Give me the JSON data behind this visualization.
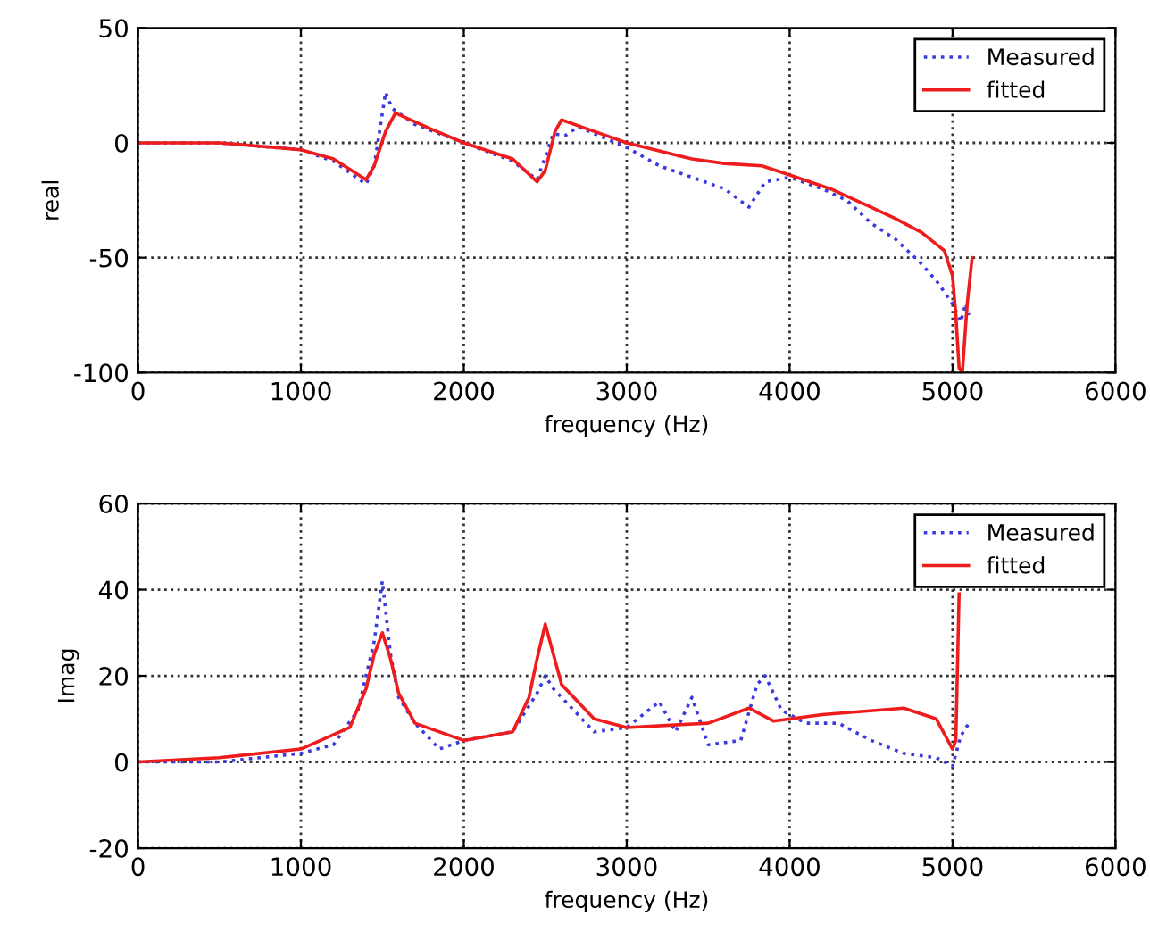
{
  "chart_data": [
    {
      "type": "line",
      "xlabel": "frequency (Hz)",
      "ylabel": "real",
      "xlim": [
        0,
        6000
      ],
      "xticks": [
        0,
        1000,
        2000,
        3000,
        4000,
        5000,
        6000
      ],
      "ylim": [
        -100,
        50
      ],
      "yticks": [
        -100,
        -50,
        0,
        50
      ],
      "grid": true,
      "legend": "top right",
      "series": [
        {
          "name": "Measured",
          "color": "#3a3adf",
          "line_style": "dotted",
          "x": [
            0,
            500,
            1000,
            1200,
            1400,
            1450,
            1520,
            1560,
            1700,
            2000,
            2300,
            2450,
            2550,
            2620,
            2700,
            3000,
            3200,
            3400,
            3600,
            3750,
            3850,
            4000,
            4200,
            4350,
            4500,
            4650,
            4800,
            4900,
            5000,
            5050,
            5080,
            5100
          ],
          "values": [
            0,
            0,
            -3,
            -8,
            -18,
            -10,
            22,
            15,
            8,
            0,
            -8,
            -16,
            4,
            3,
            7,
            -2,
            -10,
            -15,
            -20,
            -28,
            -17,
            -15,
            -20,
            -25,
            -35,
            -42,
            -52,
            -60,
            -70,
            -78,
            -70,
            -75
          ]
        },
        {
          "name": "fitted",
          "color": "#ee1c1c",
          "line_style": "solid",
          "x": [
            0,
            500,
            1000,
            1200,
            1400,
            1450,
            1520,
            1580,
            1800,
            2000,
            2300,
            2450,
            2500,
            2560,
            2600,
            2800,
            3000,
            3400,
            3600,
            3830,
            4000,
            4250,
            4500,
            4650,
            4810,
            4950,
            5000,
            5020,
            5040,
            5060,
            5090,
            5120
          ],
          "values": [
            0,
            0,
            -3,
            -7,
            -16,
            -10,
            5,
            13,
            6,
            0,
            -7,
            -17,
            -12,
            5,
            10,
            5,
            0,
            -7,
            -9,
            -10,
            -14,
            -20,
            -28,
            -33,
            -39,
            -47,
            -58,
            -75,
            -98,
            -100,
            -70,
            -50
          ]
        }
      ]
    },
    {
      "type": "line",
      "xlabel": "frequency (Hz)",
      "ylabel": "Imag",
      "xlim": [
        0,
        6000
      ],
      "xticks": [
        0,
        1000,
        2000,
        3000,
        4000,
        5000,
        6000
      ],
      "ylim": [
        -20,
        60
      ],
      "yticks": [
        -20,
        0,
        20,
        40,
        60
      ],
      "grid": true,
      "legend": "top right",
      "series": [
        {
          "name": "Measured",
          "color": "#3a3adf",
          "line_style": "dotted",
          "x": [
            0,
            500,
            1000,
            1200,
            1350,
            1450,
            1500,
            1550,
            1600,
            1700,
            1850,
            2000,
            2300,
            2450,
            2500,
            2550,
            2650,
            2800,
            3000,
            3200,
            3300,
            3400,
            3500,
            3700,
            3800,
            3850,
            3950,
            4100,
            4300,
            4500,
            4700,
            4900,
            5000,
            5050,
            5100
          ],
          "values": [
            0,
            0,
            2,
            4,
            12,
            28,
            42,
            25,
            15,
            9,
            3,
            5,
            7,
            16,
            20,
            17,
            13,
            7,
            8,
            14,
            7,
            15,
            4,
            5,
            18,
            20,
            12,
            9,
            9,
            5,
            2,
            1,
            -1,
            6,
            9
          ]
        },
        {
          "name": "fitted",
          "color": "#ee1c1c",
          "line_style": "solid",
          "x": [
            0,
            500,
            1000,
            1300,
            1400,
            1450,
            1500,
            1550,
            1600,
            1700,
            2000,
            2300,
            2400,
            2450,
            2500,
            2550,
            2600,
            2800,
            3000,
            3500,
            3750,
            3900,
            4200,
            4700,
            4900,
            5000,
            5020,
            5040
          ],
          "values": [
            0,
            1,
            3,
            8,
            17,
            25,
            30,
            24,
            16,
            9,
            5,
            7,
            15,
            24,
            32,
            25,
            18,
            10,
            8,
            9,
            12.5,
            9.5,
            11,
            12.5,
            10,
            3,
            5,
            39
          ]
        }
      ]
    }
  ]
}
